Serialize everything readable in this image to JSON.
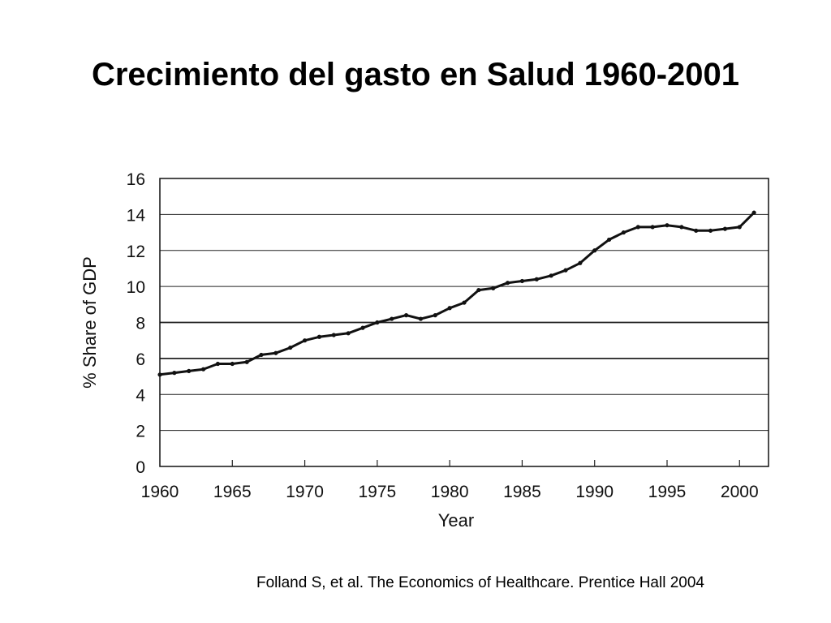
{
  "slide": {
    "title": "Crecimiento del gasto en Salud 1960-2001",
    "citation": "Folland S, et al. The Economics of Healthcare. Prentice Hall 2004"
  },
  "chart_data": {
    "type": "line",
    "title": "",
    "xlabel": "Year",
    "ylabel": "% Share of GDP",
    "xlim": [
      1960,
      2002
    ],
    "ylim": [
      0,
      16
    ],
    "xticks": [
      1960,
      1965,
      1970,
      1975,
      1980,
      1985,
      1990,
      1995,
      2000
    ],
    "yticks": [
      0,
      2,
      4,
      6,
      8,
      10,
      12,
      14,
      16
    ],
    "grid": "horizontal",
    "line_color": "#111111",
    "series": [
      {
        "x": [
          1960,
          1961,
          1962,
          1963,
          1964,
          1965,
          1966,
          1967,
          1968,
          1969,
          1970,
          1971,
          1972,
          1973,
          1974,
          1975,
          1976,
          1977,
          1978,
          1979,
          1980,
          1981,
          1982,
          1983,
          1984,
          1985,
          1986,
          1987,
          1988,
          1989,
          1990,
          1991,
          1992,
          1993,
          1994,
          1995,
          1996,
          1997,
          1998,
          1999,
          2000,
          2001
        ],
        "y": [
          5.1,
          5.2,
          5.3,
          5.4,
          5.7,
          5.7,
          5.8,
          6.2,
          6.3,
          6.6,
          7.0,
          7.2,
          7.3,
          7.4,
          7.7,
          8.0,
          8.2,
          8.4,
          8.2,
          8.4,
          8.8,
          9.1,
          9.8,
          9.9,
          10.2,
          10.3,
          10.4,
          10.6,
          10.9,
          11.3,
          12.0,
          12.6,
          13.0,
          13.3,
          13.3,
          13.4,
          13.3,
          13.1,
          13.1,
          13.2,
          13.3,
          14.1
        ]
      }
    ]
  }
}
